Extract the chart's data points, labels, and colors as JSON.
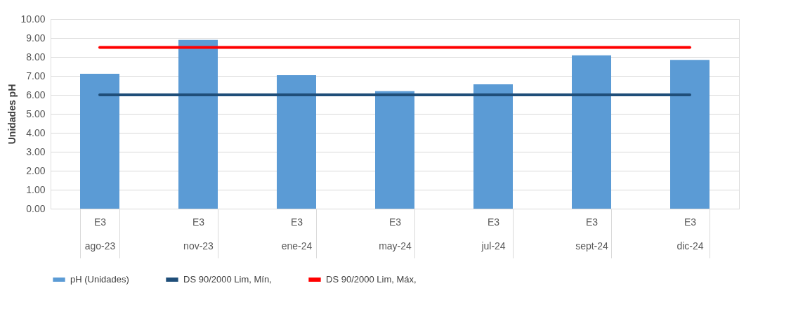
{
  "chart_data": {
    "type": "bar",
    "ylabel": "Unidades pH",
    "categories": [
      "E3\nago-23",
      "E3\nnov-23",
      "E3\nene-24",
      "E3\nmay-24",
      "E3\njul-24",
      "E3\nsept-24",
      "E3\ndic-24"
    ],
    "series": [
      {
        "name": "pH (Unidades)",
        "color": "#5b9bd5",
        "values": [
          7.11,
          8.9,
          7.04,
          6.19,
          6.56,
          8.08,
          7.84
        ]
      },
      {
        "name": "DS 90/2000 Lim, Mín,",
        "type": "line",
        "color": "#1f4e79",
        "values": [
          6.0,
          6.0,
          6.0,
          6.0,
          6.0,
          6.0,
          6.0
        ]
      },
      {
        "name": "DS 90/2000 Lim, Máx,",
        "type": "line",
        "color": "#ff0000",
        "values": [
          8.5,
          8.5,
          8.5,
          8.5,
          8.5,
          8.5,
          8.5
        ]
      }
    ],
    "ylim": [
      0,
      10
    ],
    "yticks": [
      {
        "value": 0,
        "label": "0.00"
      },
      {
        "value": 1,
        "label": "1.00"
      },
      {
        "value": 2,
        "label": "2.00"
      },
      {
        "value": 3,
        "label": "3.00"
      },
      {
        "value": 4,
        "label": "4.00"
      },
      {
        "value": 5,
        "label": "5.00"
      },
      {
        "value": 6,
        "label": "6.00"
      },
      {
        "value": 7,
        "label": "7.00"
      },
      {
        "value": 8,
        "label": "8.00"
      },
      {
        "value": 9,
        "label": "9.00"
      },
      {
        "value": 10,
        "label": "10.00"
      }
    ],
    "grid": "y",
    "legend": "bottom"
  }
}
